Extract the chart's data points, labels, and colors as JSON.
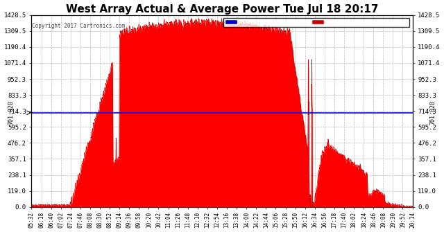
{
  "title": "West Array Actual & Average Power Tue Jul 18 20:17",
  "copyright": "Copyright 2017 Cartronics.com",
  "average_value": 701.02,
  "y_max": 1428.5,
  "y_ticks": [
    0.0,
    119.0,
    238.1,
    357.1,
    476.2,
    595.2,
    714.3,
    833.3,
    952.3,
    1071.4,
    1190.4,
    1309.5,
    1428.5
  ],
  "y_tick_labels": [
    "0.0",
    "119.0",
    "238.1",
    "357.1",
    "476.2",
    "595.2",
    "714.3",
    "833.3",
    "952.3",
    "1071.4",
    "1190.4",
    "1309.5",
    "1428.5"
  ],
  "x_labels": [
    "05:32",
    "06:18",
    "06:40",
    "07:02",
    "07:24",
    "07:46",
    "08:08",
    "08:30",
    "08:52",
    "09:14",
    "09:36",
    "09:58",
    "10:20",
    "10:42",
    "11:04",
    "11:26",
    "11:48",
    "12:10",
    "12:32",
    "12:54",
    "13:16",
    "13:38",
    "14:00",
    "14:22",
    "14:44",
    "15:06",
    "15:28",
    "15:50",
    "16:12",
    "16:34",
    "16:56",
    "17:18",
    "17:40",
    "18:02",
    "18:24",
    "18:46",
    "19:08",
    "19:30",
    "19:52",
    "20:14"
  ],
  "avg_line_color": "#0000FF",
  "fill_color": "#FF0000",
  "line_color": "#CC0000",
  "bg_color": "#FFFFFF",
  "grid_color": "#BBBBBB",
  "title_color": "#000000",
  "legend_avg_bg": "#0000CC",
  "legend_west_bg": "#CC0000",
  "legend_text_color": "#FFFFFF"
}
